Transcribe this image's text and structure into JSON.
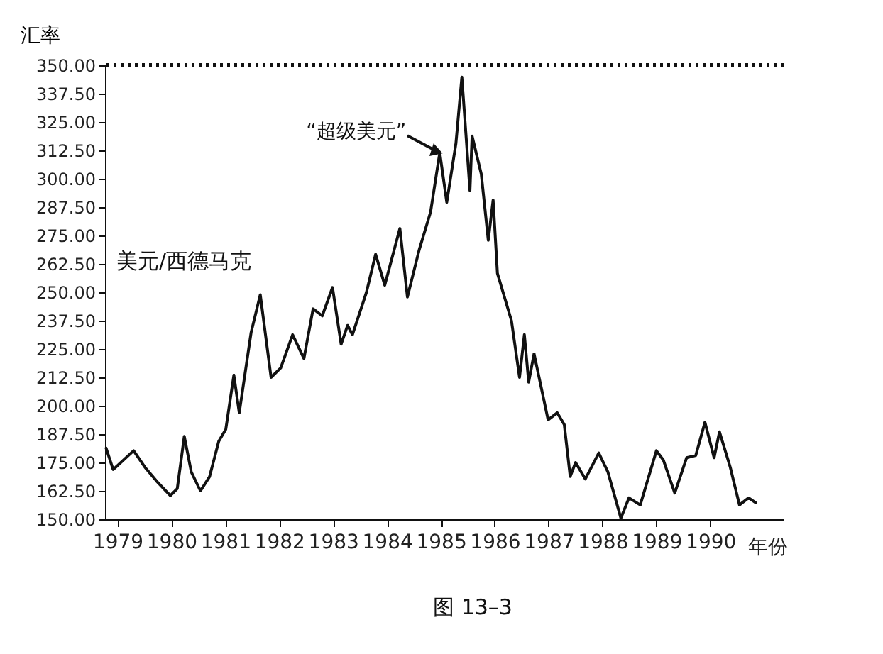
{
  "chart_data": {
    "type": "line",
    "ylabel": "汇率",
    "xlabel": "年份",
    "series": [
      {
        "color": "#111111",
        "x": [
          1978.79,
          1978.92,
          1979.3,
          1979.51,
          1979.73,
          1979.98,
          1980.11,
          1980.24,
          1980.37,
          1980.54,
          1980.71,
          1980.88,
          1981.01,
          1981.16,
          1981.26,
          1981.48,
          1981.65,
          1981.85,
          1982.03,
          1982.25,
          1982.46,
          1982.63,
          1982.8,
          1982.99,
          1983.15,
          1983.27,
          1983.36,
          1983.62,
          1983.79,
          1983.96,
          1984.24,
          1984.38,
          1984.6,
          1984.81,
          1984.98,
          1985.11,
          1985.28,
          1985.39,
          1985.54,
          1985.58,
          1985.75,
          1985.88,
          1985.97,
          1986.05,
          1986.31,
          1986.46,
          1986.55,
          1986.63,
          1986.73,
          1986.99,
          1987.16,
          1987.29,
          1987.4,
          1987.5,
          1987.68,
          1987.93,
          1988.1,
          1988.34,
          1988.49,
          1988.7,
          1989.0,
          1989.13,
          1989.34,
          1989.56,
          1989.73,
          1989.9,
          1990.07,
          1990.17,
          1990.37,
          1990.54,
          1990.71,
          1990.84
        ],
        "values": [
          181.3,
          171.9,
          180.2,
          172.9,
          166.7,
          160.4,
          163.5,
          186.5,
          170.8,
          162.5,
          168.8,
          184.4,
          189.6,
          213.5,
          196.9,
          232.3,
          248.9,
          212.5,
          216.7,
          231.3,
          220.8,
          242.7,
          239.6,
          252.1,
          227.1,
          235.4,
          231.3,
          250.0,
          266.7,
          253.1,
          278.1,
          247.9,
          268.8,
          285.4,
          311.5,
          289.6,
          315.6,
          344.8,
          294.8,
          318.8,
          302.1,
          272.9,
          290.6,
          258.3,
          237.5,
          212.5,
          231.3,
          210.4,
          222.9,
          193.8,
          196.9,
          191.7,
          168.8,
          175.0,
          167.7,
          179.2,
          170.8,
          150.5,
          159.4,
          156.3,
          180.2,
          176.0,
          161.5,
          177.1,
          178.1,
          192.7,
          177.1,
          188.5,
          172.9,
          156.3,
          159.4,
          157.3
        ]
      }
    ],
    "xlim": [
      1978.77,
      1991.36
    ],
    "xticks": [
      1979,
      1980,
      1981,
      1982,
      1983,
      1984,
      1985,
      1986,
      1987,
      1988,
      1989,
      1990
    ],
    "ylim": [
      150,
      350
    ],
    "yticks": [
      {
        "value": 150,
        "label": "150.00"
      },
      {
        "value": 162.5,
        "label": "162.50"
      },
      {
        "value": 175,
        "label": "175.00"
      },
      {
        "value": 187.5,
        "label": "187.50"
      },
      {
        "value": 200,
        "label": "200.00"
      },
      {
        "value": 212.5,
        "label": "212.50"
      },
      {
        "value": 225,
        "label": "225.00"
      },
      {
        "value": 237.5,
        "label": "237.50"
      },
      {
        "value": 250,
        "label": "250.00"
      },
      {
        "value": 262.5,
        "label": "262.50"
      },
      {
        "value": 275,
        "label": "275.00"
      },
      {
        "value": 287.5,
        "label": "287.50"
      },
      {
        "value": 300,
        "label": "300.00"
      },
      {
        "value": 312.5,
        "label": "312.50"
      },
      {
        "value": 325,
        "label": "325.00"
      },
      {
        "value": 337.5,
        "label": "337.50"
      },
      {
        "value": 350,
        "label": "350.00"
      }
    ],
    "ref_lines": [
      {
        "axis": "y",
        "value": 350,
        "line_style": "dotted",
        "color": "#111111"
      }
    ],
    "annotations": [
      {
        "text": "“超级美元”",
        "x": 1984.98,
        "y": 311.5
      },
      "美元/西德马克",
      "图 13–3"
    ],
    "grid": false,
    "marker": "none",
    "line_style": "solid"
  }
}
